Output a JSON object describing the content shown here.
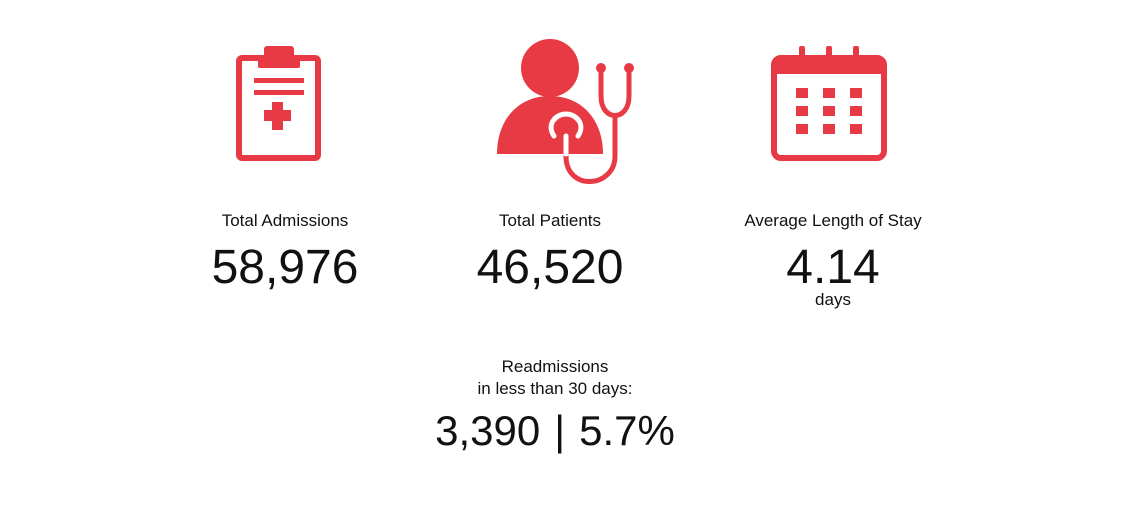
{
  "accent_color": "#e83a45",
  "stats": {
    "admissions": {
      "icon": "clipboard-icon",
      "label": "Total Admissions",
      "value": "58,976"
    },
    "patients": {
      "icon": "doctor-stethoscope-icon",
      "label": "Total Patients",
      "value": "46,520"
    },
    "stay": {
      "icon": "calendar-icon",
      "label": "Average Length of Stay",
      "value": "4.14",
      "unit": "days"
    }
  },
  "readmissions": {
    "label_line1": "Readmissions",
    "label_line2": "in less than 30 days:",
    "count": "3,390",
    "separator": "|",
    "percent": "5.7%"
  }
}
